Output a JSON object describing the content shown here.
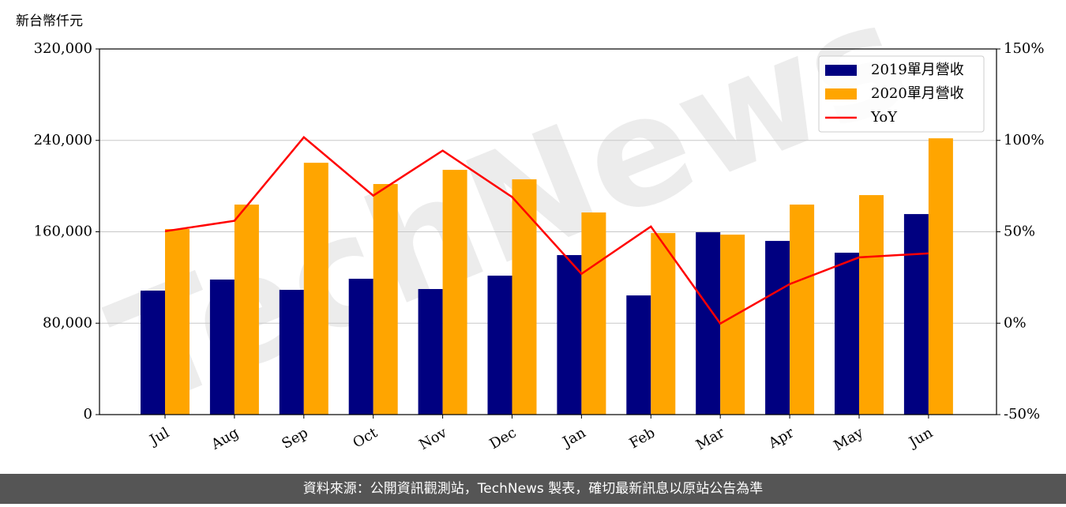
{
  "chart_data": {
    "type": "bar",
    "ylabel": "新台幣仟元",
    "categories": [
      "Jul",
      "Aug",
      "Sep",
      "Oct",
      "Nov",
      "Dec",
      "Jan",
      "Feb",
      "Mar",
      "Apr",
      "May",
      "Jun"
    ],
    "series": [
      {
        "name": "2019單月營收",
        "color": "#000080",
        "values": [
          108500,
          118200,
          109200,
          118900,
          109900,
          121600,
          139600,
          104300,
          159600,
          152000,
          141700,
          175500
        ]
      },
      {
        "name": "2020單月營收",
        "color": "#ffa500",
        "values": [
          162400,
          183800,
          220400,
          201800,
          214200,
          205900,
          176900,
          158900,
          157500,
          183800,
          192100,
          241800
        ]
      },
      {
        "name": "YoY",
        "color": "#ff0000",
        "type": "line",
        "axis": "y2",
        "values": [
          50.3,
          56,
          101.7,
          69.8,
          94.4,
          69,
          27,
          52.9,
          -0.2,
          21.4,
          36,
          38.2
        ]
      }
    ],
    "ylim": [
      0,
      320000
    ],
    "yticks": [
      0,
      {
        "value": 80000,
        "label": "80,000"
      },
      {
        "value": 160000,
        "label": "160,000"
      },
      {
        "value": 240000,
        "label": "240,000"
      },
      {
        "value": 320000,
        "label": "320,000"
      }
    ],
    "y2lim": [
      -50,
      150
    ],
    "y2ticks": [
      {
        "value": -50,
        "label": "-50%"
      },
      {
        "value": 0,
        "label": "0%"
      },
      {
        "value": 50,
        "label": "50%"
      },
      {
        "value": 100,
        "label": "100%"
      },
      {
        "value": 150,
        "label": "150%"
      }
    ],
    "grid": true,
    "legend": "upper right",
    "watermark": "TechNews",
    "source": "資料來源：公開資訊觀測站，TechNews 製表，確切最新訊息以原站公告為準"
  }
}
